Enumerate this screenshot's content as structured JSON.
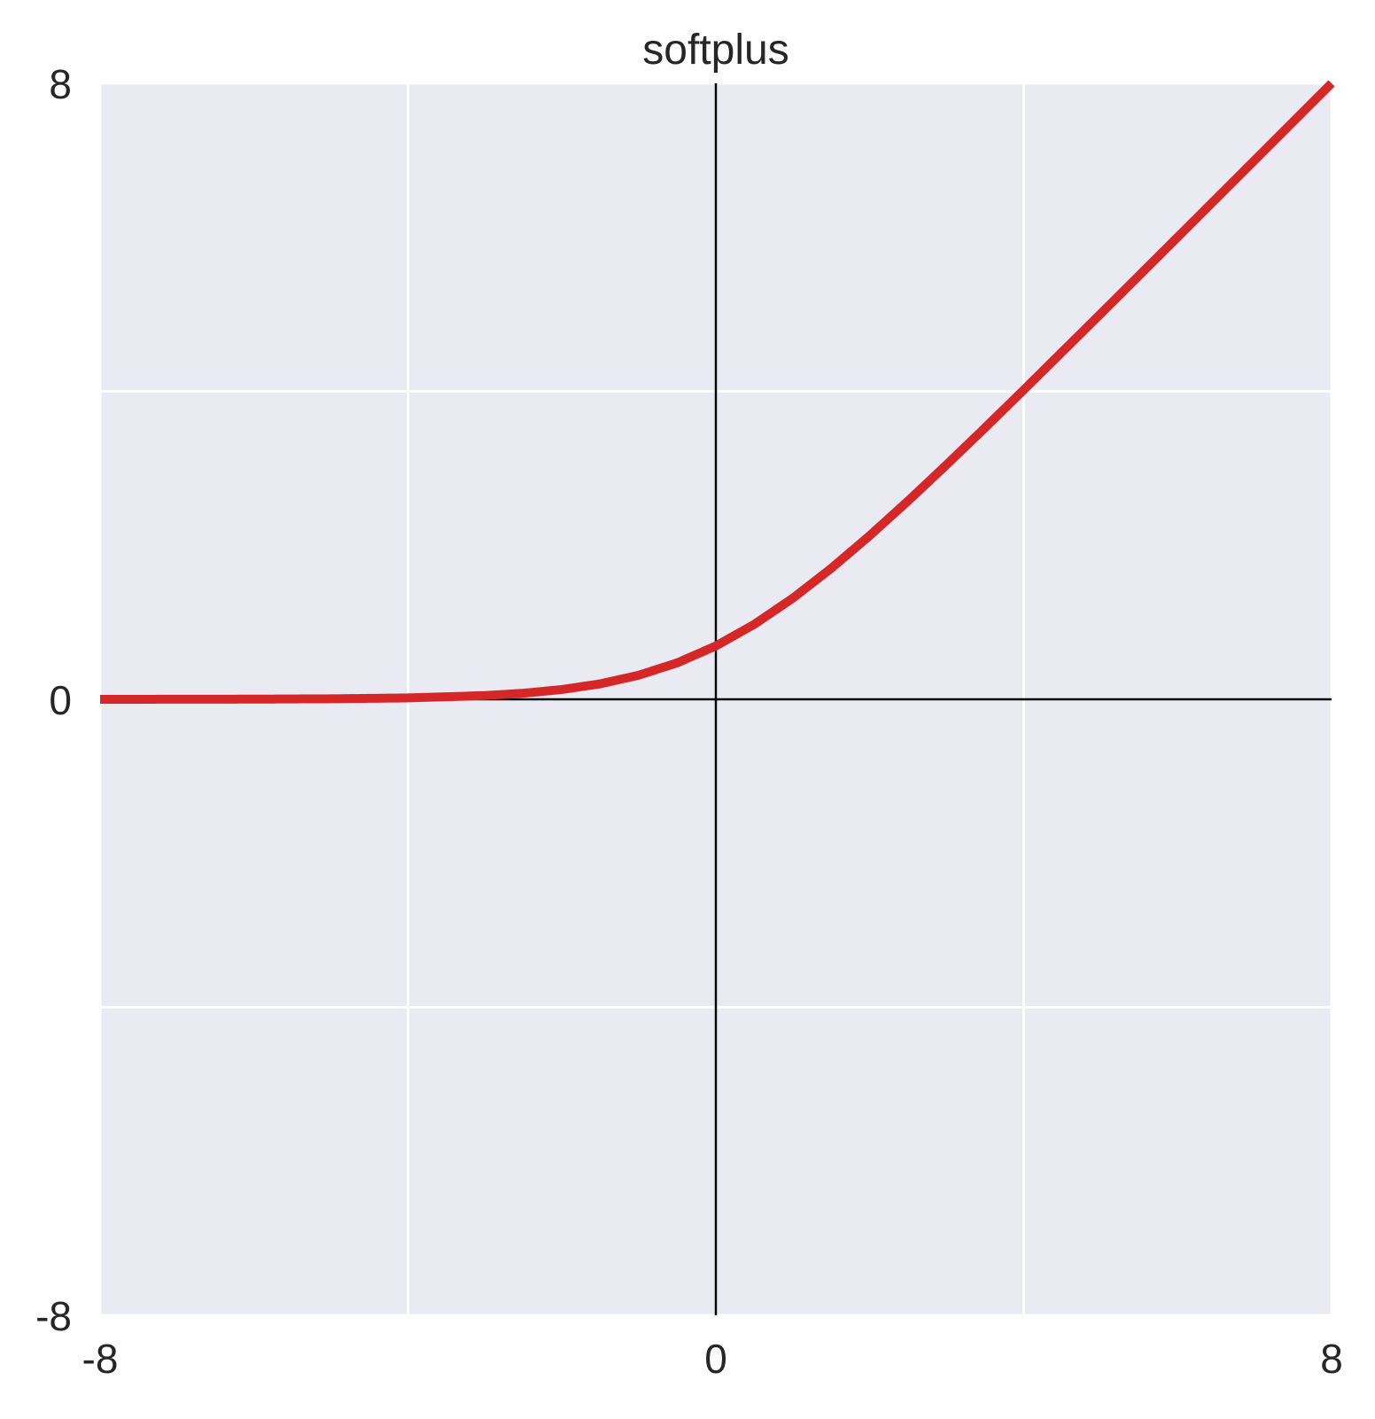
{
  "chart_data": {
    "type": "line",
    "title": "softplus",
    "xlabel": "",
    "ylabel": "",
    "xlim": [
      -8,
      8
    ],
    "ylim": [
      -8,
      8
    ],
    "x_ticks": [
      -8,
      0,
      8
    ],
    "y_ticks": [
      -8,
      0,
      8
    ],
    "x_tick_labels": [
      "-8",
      "0",
      "8"
    ],
    "y_tick_labels": [
      "-8",
      "0",
      "8"
    ],
    "grid": true,
    "grid_x": [
      -8,
      -4,
      0,
      4,
      8
    ],
    "grid_y": [
      -8,
      -4,
      0,
      4,
      8
    ],
    "zero_axes": true,
    "legend": "none",
    "background_color": "#eaeaf2",
    "series": [
      {
        "color": "#d62728",
        "x": [
          -8,
          -7,
          -6,
          -5,
          -4,
          -3,
          -2.5,
          -2,
          -1.5,
          -1,
          -0.5,
          0,
          0.5,
          1,
          1.5,
          2,
          2.5,
          3,
          3.5,
          4,
          5,
          6,
          7,
          8
        ],
        "y": [
          0.0003,
          0.0009,
          0.0025,
          0.0067,
          0.0181,
          0.0486,
          0.0789,
          0.1269,
          0.2014,
          0.3133,
          0.4741,
          0.6931,
          0.9741,
          1.3133,
          1.7014,
          2.1269,
          2.5789,
          3.0486,
          3.5297,
          4.0181,
          5.0067,
          6.0025,
          7.0009,
          8.0003
        ]
      }
    ]
  }
}
